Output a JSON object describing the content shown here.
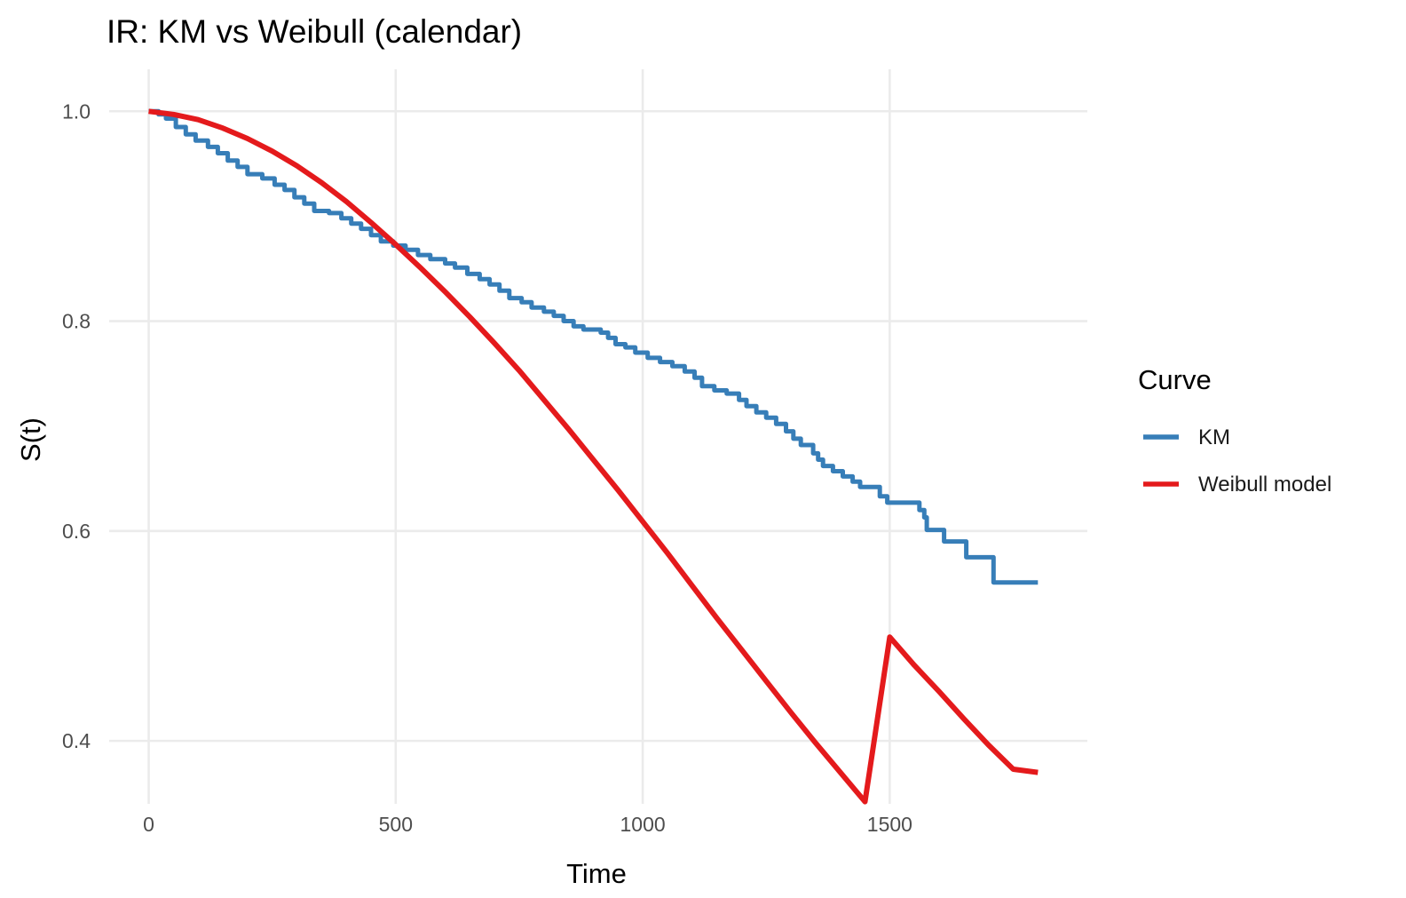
{
  "chart_data": {
    "type": "line",
    "title": "IR: KM vs Weibull (calendar)",
    "xlabel": "Time",
    "ylabel": "S(t)",
    "xlim": [
      -80,
      1900
    ],
    "ylim": [
      0.34,
      1.04
    ],
    "x_ticks": [
      0,
      500,
      1000,
      1500
    ],
    "y_ticks": [
      0.4,
      0.6,
      0.8,
      1.0
    ],
    "y_tick_labels": [
      "0.4",
      "0.6",
      "0.8",
      "1.0"
    ],
    "grid": true,
    "legend": {
      "title": "Curve",
      "position": "right"
    },
    "series": [
      {
        "name": "KM",
        "color": "#377eb8",
        "step": true,
        "points": [
          [
            0,
            1.0
          ],
          [
            20,
            0.997
          ],
          [
            35,
            0.993
          ],
          [
            55,
            0.985
          ],
          [
            75,
            0.978
          ],
          [
            95,
            0.972
          ],
          [
            120,
            0.966
          ],
          [
            140,
            0.96
          ],
          [
            160,
            0.953
          ],
          [
            180,
            0.947
          ],
          [
            200,
            0.94
          ],
          [
            230,
            0.936
          ],
          [
            255,
            0.93
          ],
          [
            275,
            0.925
          ],
          [
            295,
            0.918
          ],
          [
            315,
            0.912
          ],
          [
            335,
            0.905
          ],
          [
            365,
            0.903
          ],
          [
            390,
            0.898
          ],
          [
            410,
            0.893
          ],
          [
            430,
            0.888
          ],
          [
            450,
            0.882
          ],
          [
            470,
            0.876
          ],
          [
            495,
            0.872
          ],
          [
            520,
            0.868
          ],
          [
            545,
            0.863
          ],
          [
            570,
            0.859
          ],
          [
            600,
            0.855
          ],
          [
            620,
            0.851
          ],
          [
            645,
            0.845
          ],
          [
            670,
            0.84
          ],
          [
            690,
            0.835
          ],
          [
            710,
            0.829
          ],
          [
            730,
            0.822
          ],
          [
            755,
            0.818
          ],
          [
            775,
            0.813
          ],
          [
            800,
            0.809
          ],
          [
            820,
            0.805
          ],
          [
            840,
            0.8
          ],
          [
            860,
            0.795
          ],
          [
            880,
            0.792
          ],
          [
            915,
            0.789
          ],
          [
            930,
            0.784
          ],
          [
            945,
            0.778
          ],
          [
            965,
            0.775
          ],
          [
            985,
            0.77
          ],
          [
            1010,
            0.765
          ],
          [
            1035,
            0.761
          ],
          [
            1060,
            0.757
          ],
          [
            1085,
            0.752
          ],
          [
            1105,
            0.746
          ],
          [
            1120,
            0.738
          ],
          [
            1145,
            0.734
          ],
          [
            1170,
            0.731
          ],
          [
            1195,
            0.725
          ],
          [
            1210,
            0.719
          ],
          [
            1230,
            0.713
          ],
          [
            1250,
            0.708
          ],
          [
            1270,
            0.702
          ],
          [
            1290,
            0.695
          ],
          [
            1305,
            0.688
          ],
          [
            1320,
            0.682
          ],
          [
            1345,
            0.674
          ],
          [
            1355,
            0.668
          ],
          [
            1365,
            0.662
          ],
          [
            1385,
            0.657
          ],
          [
            1405,
            0.652
          ],
          [
            1425,
            0.647
          ],
          [
            1440,
            0.642
          ],
          [
            1480,
            0.633
          ],
          [
            1495,
            0.627
          ],
          [
            1560,
            0.62
          ],
          [
            1570,
            0.613
          ],
          [
            1575,
            0.601
          ],
          [
            1610,
            0.59
          ],
          [
            1655,
            0.575
          ],
          [
            1710,
            0.551
          ],
          [
            1800,
            0.551
          ]
        ]
      },
      {
        "name": "Weibull model",
        "color": "#e41a1c",
        "step": false,
        "points": [
          [
            0,
            1.0
          ],
          [
            50,
            0.997
          ],
          [
            100,
            0.992
          ],
          [
            150,
            0.984
          ],
          [
            200,
            0.974
          ],
          [
            250,
            0.962
          ],
          [
            300,
            0.948
          ],
          [
            350,
            0.932
          ],
          [
            400,
            0.914
          ],
          [
            450,
            0.894
          ],
          [
            500,
            0.873
          ],
          [
            550,
            0.851
          ],
          [
            600,
            0.828
          ],
          [
            650,
            0.804
          ],
          [
            700,
            0.779
          ],
          [
            750,
            0.753
          ],
          [
            800,
            0.725
          ],
          [
            850,
            0.697
          ],
          [
            900,
            0.668
          ],
          [
            950,
            0.639
          ],
          [
            1000,
            0.609
          ],
          [
            1050,
            0.579
          ],
          [
            1100,
            0.548
          ],
          [
            1150,
            0.517
          ],
          [
            1200,
            0.487
          ],
          [
            1250,
            0.457
          ],
          [
            1300,
            0.427
          ],
          [
            1350,
            0.398
          ],
          [
            1400,
            0.37
          ],
          [
            1450,
            0.342
          ],
          [
            1500,
            0.499
          ],
          [
            1550,
            0.472
          ],
          [
            1600,
            0.447
          ],
          [
            1650,
            0.421
          ],
          [
            1700,
            0.396
          ],
          [
            1750,
            0.373
          ],
          [
            1800,
            0.37
          ]
        ]
      }
    ]
  }
}
